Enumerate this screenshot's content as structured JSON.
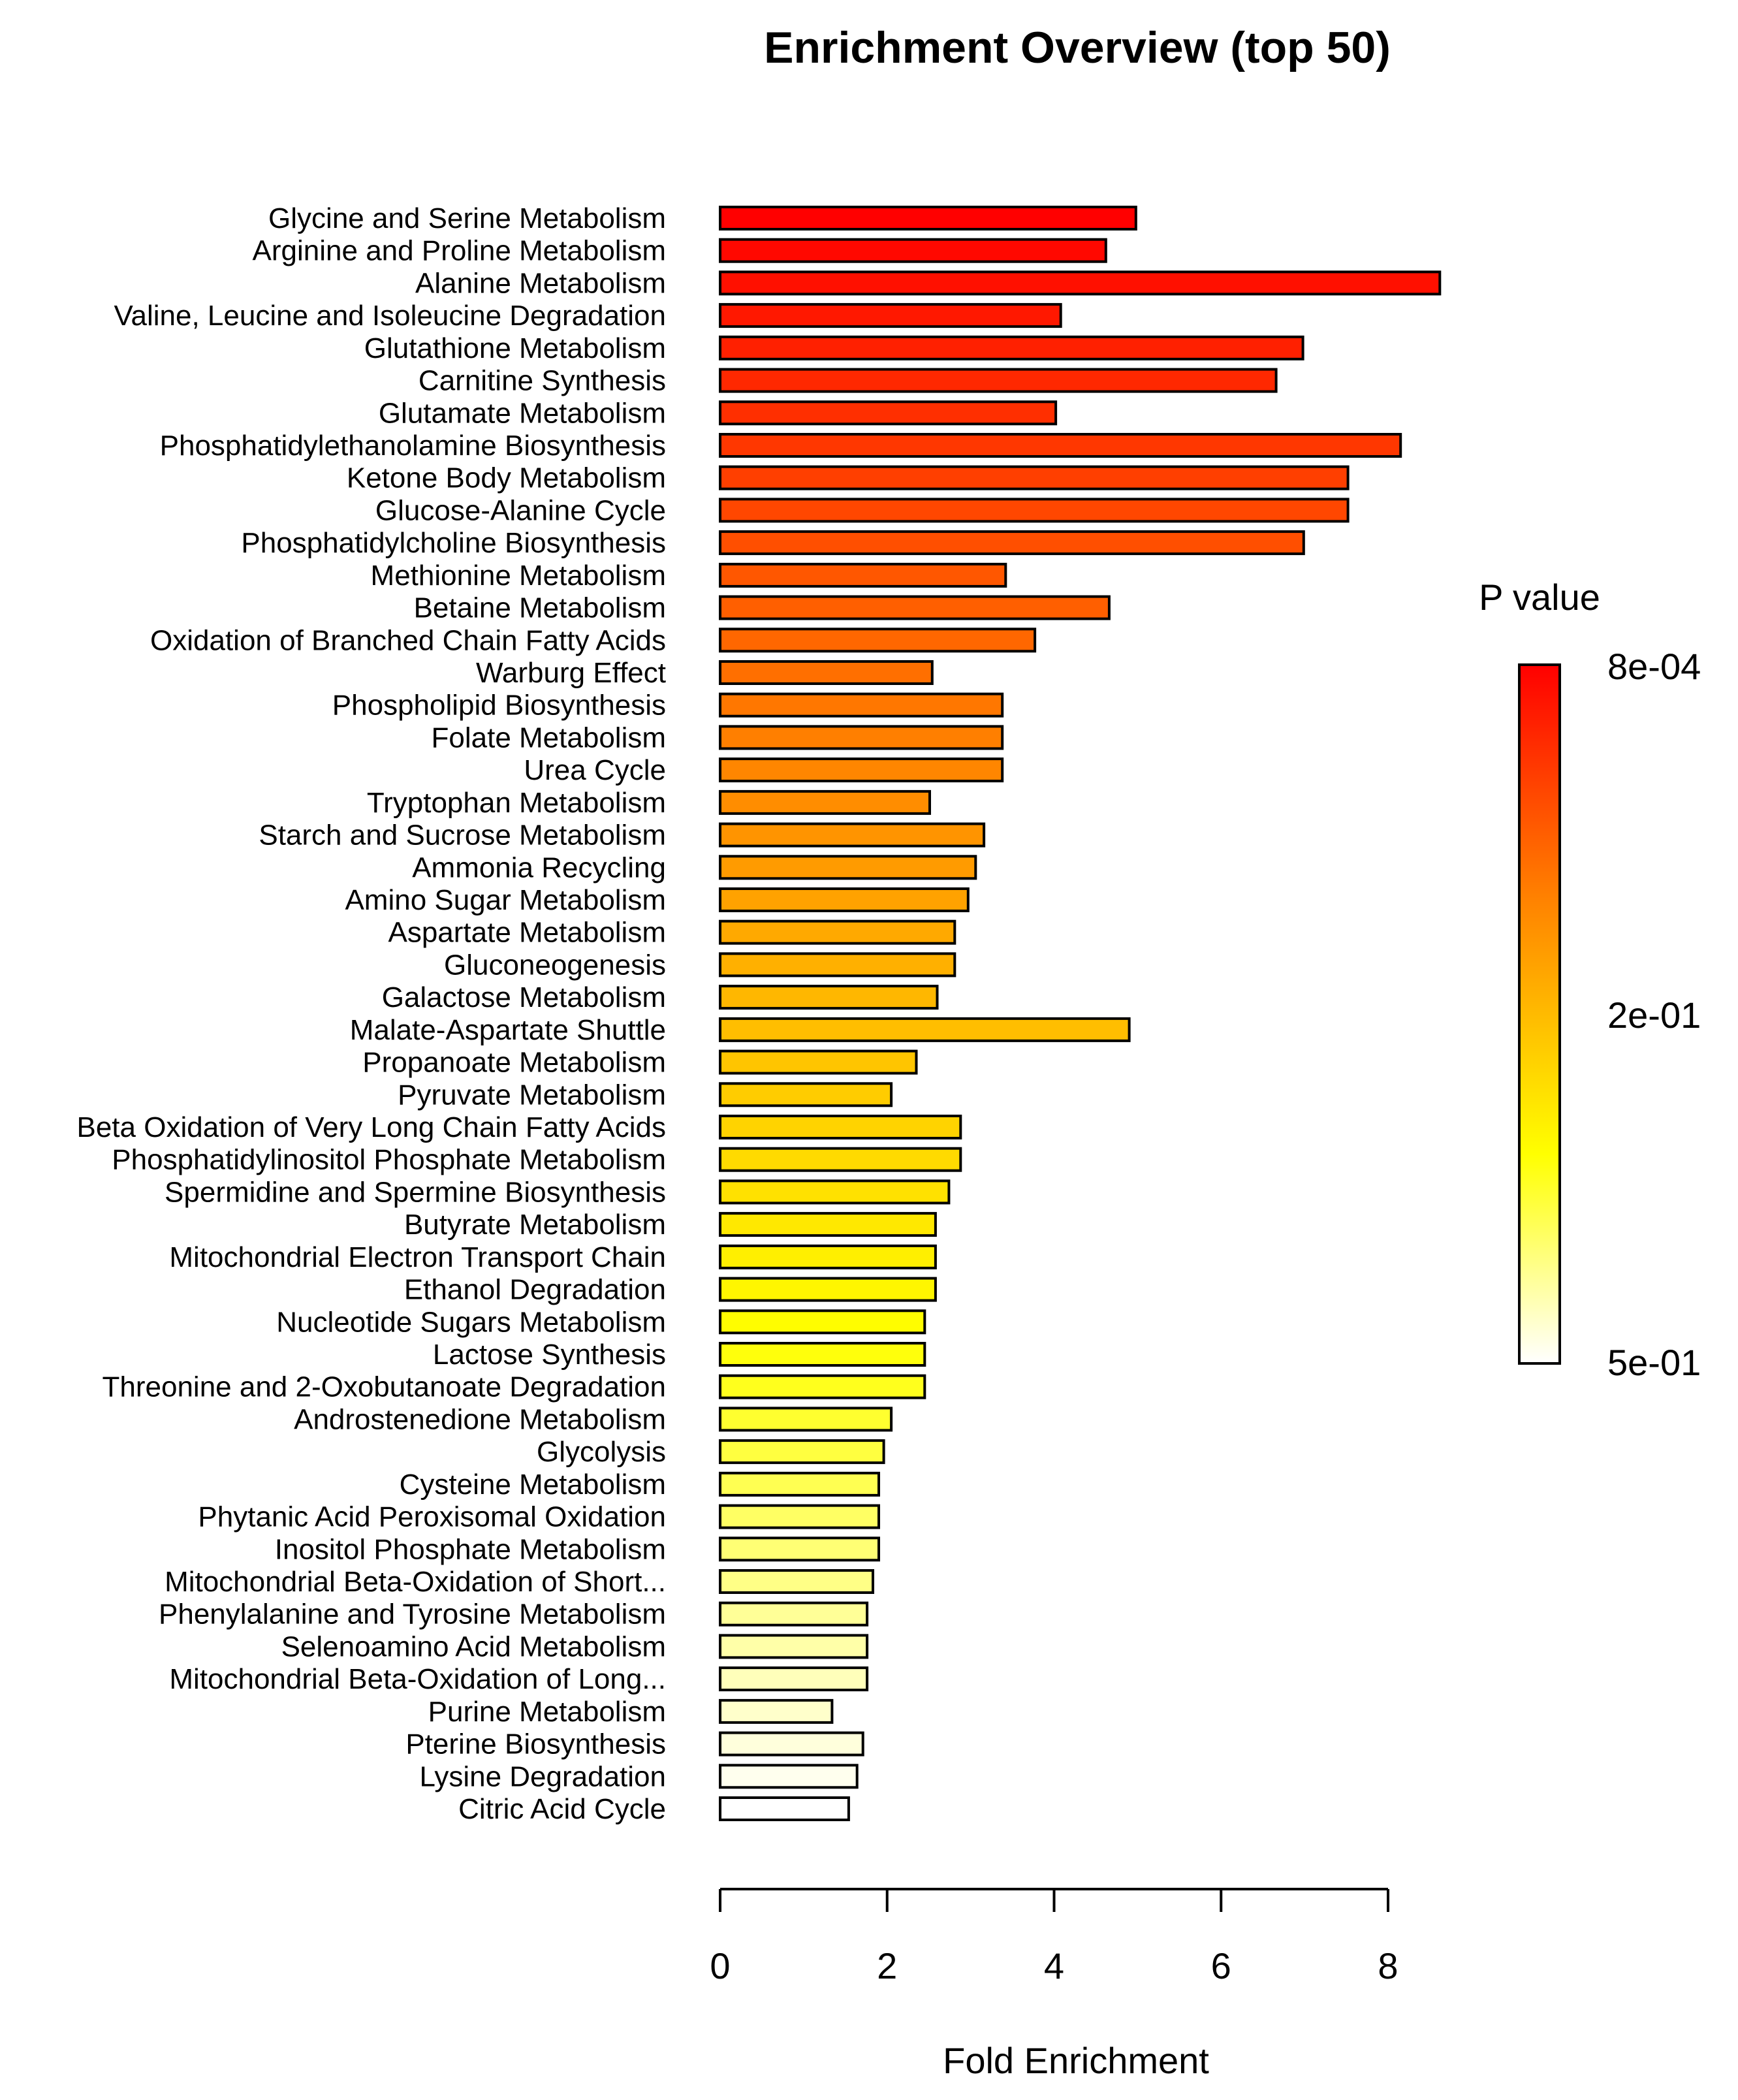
{
  "chart_data": {
    "type": "bar",
    "orientation": "horizontal",
    "title": "Enrichment Overview (top 50)",
    "xlabel": "Fold Enrichment",
    "ylabel": "",
    "xlim": [
      0,
      8
    ],
    "xticks": [
      0,
      2,
      4,
      6,
      8
    ],
    "categories": [
      "Glycine and Serine Metabolism",
      "Arginine and Proline Metabolism",
      "Alanine Metabolism",
      "Valine, Leucine and Isoleucine Degradation",
      "Glutathione Metabolism",
      "Carnitine Synthesis",
      "Glutamate Metabolism",
      "Phosphatidylethanolamine Biosynthesis",
      "Ketone Body Metabolism",
      "Glucose-Alanine Cycle",
      "Phosphatidylcholine Biosynthesis",
      "Methionine Metabolism",
      "Betaine Metabolism",
      "Oxidation of Branched Chain Fatty Acids",
      "Warburg Effect",
      "Phospholipid Biosynthesis",
      "Folate Metabolism",
      "Urea Cycle",
      "Tryptophan Metabolism",
      "Starch and Sucrose Metabolism",
      "Ammonia Recycling",
      "Amino Sugar Metabolism",
      "Aspartate Metabolism",
      "Gluconeogenesis",
      "Galactose Metabolism",
      "Malate-Aspartate Shuttle",
      "Propanoate Metabolism",
      "Pyruvate Metabolism",
      "Beta Oxidation of Very Long Chain Fatty Acids",
      "Phosphatidylinositol Phosphate Metabolism",
      "Spermidine and Spermine Biosynthesis",
      "Butyrate Metabolism",
      "Mitochondrial Electron Transport Chain",
      "Ethanol Degradation",
      "Nucleotide Sugars Metabolism",
      "Lactose Synthesis",
      "Threonine and 2-Oxobutanoate Degradation",
      "Androstenedione Metabolism",
      "Glycolysis",
      "Cysteine Metabolism",
      "Phytanic Acid Peroxisomal Oxidation",
      "Inositol Phosphate Metabolism",
      "Mitochondrial Beta-Oxidation of Short...",
      "Phenylalanine and Tyrosine Metabolism",
      "Selenoamino Acid Metabolism",
      "Mitochondrial Beta-Oxidation of Long...",
      "Purine Metabolism",
      "Pterine Biosynthesis",
      "Lysine Degradation",
      "Citric Acid Cycle"
    ],
    "values": [
      4.98,
      4.62,
      8.62,
      4.08,
      6.98,
      6.66,
      4.02,
      8.15,
      7.52,
      7.52,
      6.99,
      3.42,
      4.66,
      3.77,
      2.54,
      3.38,
      3.38,
      3.38,
      2.51,
      3.16,
      3.06,
      2.97,
      2.81,
      2.81,
      2.6,
      4.9,
      2.35,
      2.05,
      2.88,
      2.88,
      2.74,
      2.58,
      2.58,
      2.58,
      2.45,
      2.45,
      2.45,
      2.05,
      1.96,
      1.9,
      1.9,
      1.9,
      1.83,
      1.76,
      1.76,
      1.76,
      1.34,
      1.71,
      1.64,
      1.54
    ],
    "color_scale": {
      "title": "P value",
      "tick_labels": [
        "8e-04",
        "2e-01",
        "5e-01"
      ],
      "colors": [
        "#ff0000",
        "#ff8000",
        "#ffff00",
        "#ffffff"
      ]
    },
    "grid": false,
    "legend": "right"
  }
}
